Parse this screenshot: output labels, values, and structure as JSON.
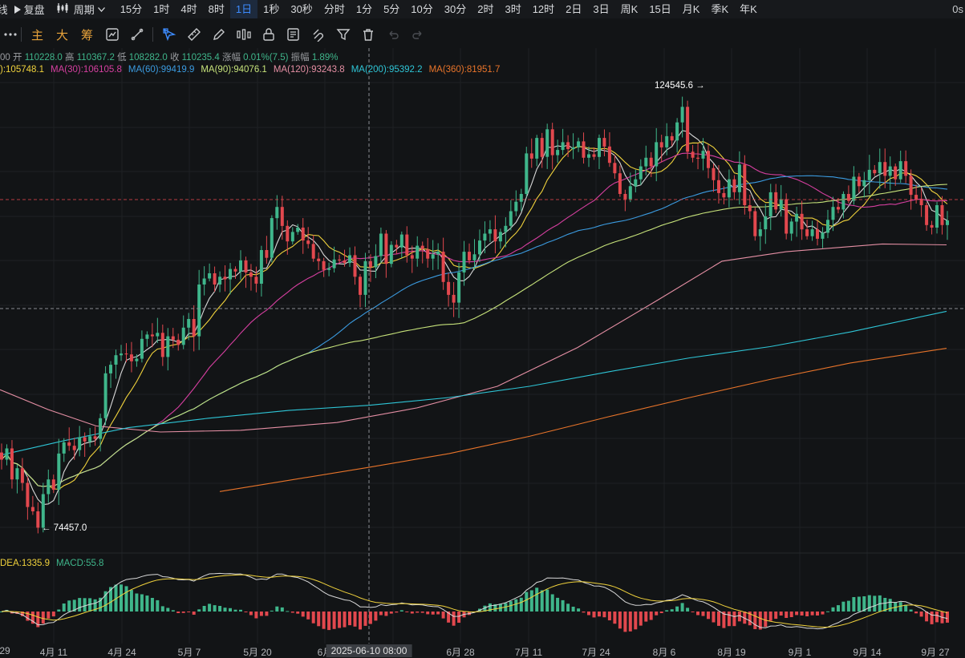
{
  "topbar": {
    "kline_label": "K线",
    "replay_label": "复盘",
    "period_label": "周期",
    "periods": [
      "15分",
      "1时",
      "4时",
      "8时",
      "1日",
      "1秒",
      "30秒",
      "分时",
      "1分",
      "5分",
      "10分",
      "30分",
      "2时",
      "3时",
      "12时",
      "2日",
      "3日",
      "周K",
      "15日",
      "月K",
      "季K",
      "年K"
    ],
    "active_period": "1日",
    "right_text": "0s"
  },
  "toolbar2": {
    "main_label": "主",
    "big_label": "大",
    "chip_label": "筹"
  },
  "ohlc": {
    "prefix": "00",
    "open_label": "开",
    "open": "110228.0",
    "high_label": "高",
    "high": "110367.2",
    "low_label": "低",
    "low": "108282.0",
    "close_label": "收",
    "close": "110235.4",
    "change_label": "涨幅",
    "change": "0.01%(7.5)",
    "amp_label": "振幅",
    "amp": "1.89%"
  },
  "ma_legend": [
    {
      "text": "):105748.1",
      "color": "#f0d23c"
    },
    {
      "text": "MA(30):106105.8",
      "color": "#d63fa0"
    },
    {
      "text": "MA(60):99419.9",
      "color": "#3b9be0"
    },
    {
      "text": "MA(90):94076.1",
      "color": "#c6e27a"
    },
    {
      "text": "MA(120):93243.8",
      "color": "#e58fa4"
    },
    {
      "text": "MA(200):95392.2",
      "color": "#2ec5d6"
    },
    {
      "text": "MA(360):81951.7",
      "color": "#e8742a"
    }
  ],
  "macd_legend": [
    {
      "text": "DEA:1335.9",
      "color": "#f0d23c"
    },
    {
      "text": "MACD:55.8",
      "color": "#3fb68b"
    }
  ],
  "annotations": {
    "high": "124545.6",
    "low": "74457.0"
  },
  "xaxis": {
    "labels": [
      "29",
      "4月 11",
      "4月 24",
      "5月 7",
      "5月 20",
      "6月",
      "6月 28",
      "7月 11",
      "7月 24",
      "8月 6",
      "8月 19",
      "9月 1",
      "9月 14",
      "9月 27"
    ],
    "cursor_label": "2025-06-10 08:00"
  },
  "colors": {
    "up": "#3fb68b",
    "down": "#e2484e",
    "bg": "#121416",
    "grid": "#1e2124"
  },
  "chart_data": {
    "type": "candlestick",
    "title": "",
    "series_note": "",
    "closes": [
      82500,
      83800,
      80200,
      81500,
      79800,
      77000,
      76500,
      74600,
      78500,
      80200,
      79000,
      83200,
      84500,
      84100,
      83600,
      85100,
      84600,
      85200,
      84900,
      87300,
      92500,
      93500,
      94600,
      94800,
      94700,
      93900,
      94200,
      96500,
      97000,
      96800,
      97200,
      94400,
      96800,
      96400,
      95800,
      97800,
      98800,
      96800,
      102800,
      103500,
      104100,
      102800,
      103700,
      103400,
      104600,
      104300,
      105600,
      104200,
      103700,
      102900,
      106800,
      105900,
      110500,
      111800,
      109600,
      107800,
      108900,
      109400,
      107900,
      107500,
      105800,
      105500,
      104500,
      104700,
      105700,
      105600,
      105300,
      106200,
      103700,
      101600,
      105500,
      104800,
      106100,
      108700,
      105200,
      107400,
      107100,
      108600,
      106200,
      105800,
      107300,
      106900,
      105800,
      106300,
      106600,
      103100,
      101600,
      100700,
      104200,
      106600,
      105600,
      106300,
      107900,
      108700,
      109200,
      107800,
      108900,
      109600,
      111300,
      112400,
      113300,
      118000,
      117400,
      119800,
      117600,
      120800,
      117800,
      118400,
      119300,
      118500,
      118700,
      119400,
      117500,
      117900,
      117600,
      119800,
      118800,
      116900,
      115700,
      113300,
      112700,
      114200,
      115000,
      116500,
      117500,
      116500,
      119300,
      118700,
      120000,
      119500,
      121600,
      123400,
      118200,
      117500,
      117400,
      118300,
      116300,
      114900,
      113400,
      112900,
      115000,
      113500,
      116700,
      112000,
      111300,
      108400,
      109200,
      110700,
      113500,
      111500,
      112700,
      108700,
      110100,
      111000,
      109200,
      108400,
      109200,
      108100,
      108800,
      110300,
      111800,
      111500,
      113300,
      112500,
      115300,
      114200,
      114900,
      116100,
      115700,
      117000,
      115400,
      116500,
      115000,
      117100,
      115400,
      113200,
      112700,
      112000,
      109700,
      109400,
      112000,
      109700,
      110235
    ]
  }
}
